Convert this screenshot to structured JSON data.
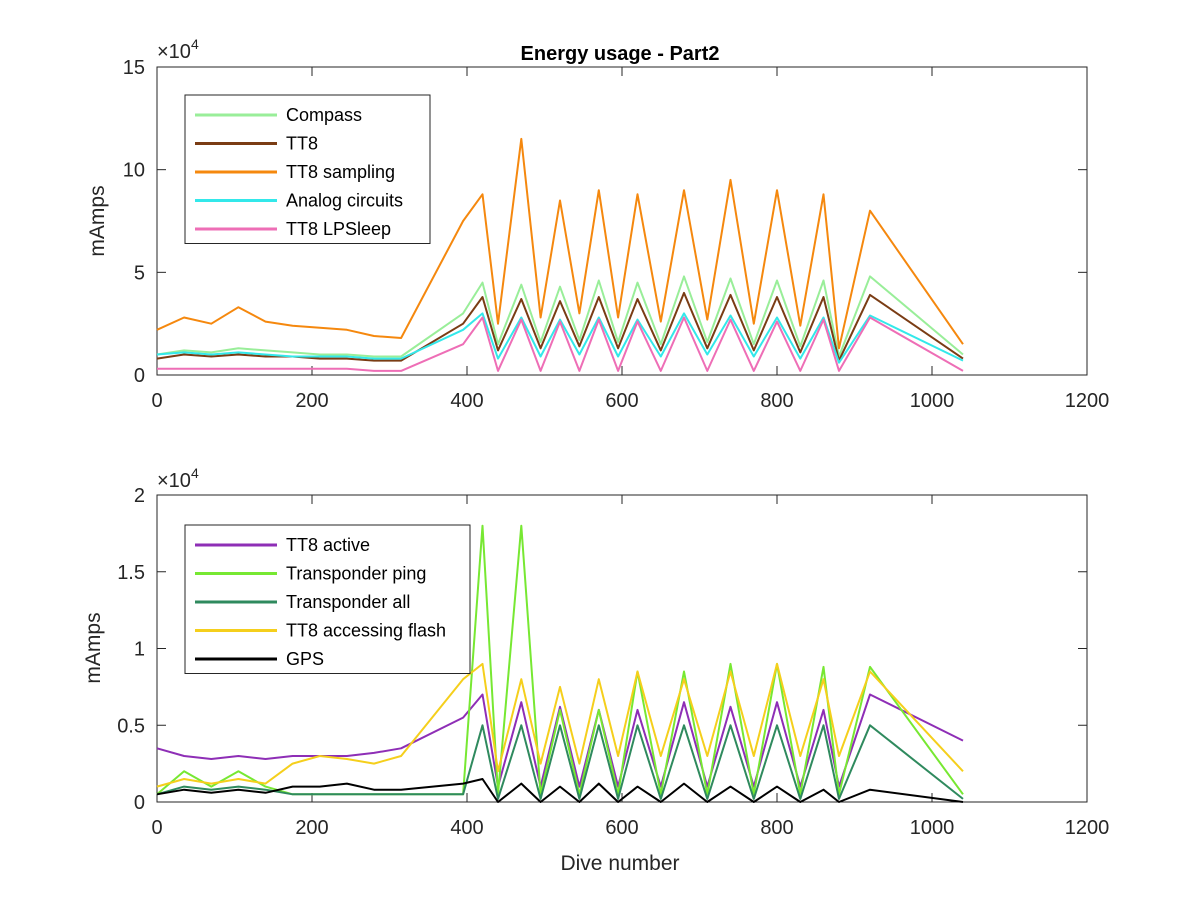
{
  "figure": {
    "title": "Energy usage - Part2",
    "xlabel": "Dive number"
  },
  "chart_data": [
    {
      "type": "line",
      "title": "Energy usage - Part2",
      "xlabel": "",
      "ylabel": "mAmps",
      "y_multiplier": "×10",
      "y_exponent": "4",
      "xlim": [
        0,
        1200
      ],
      "ylim": [
        0,
        15
      ],
      "x_ticks": [
        "0",
        "200",
        "400",
        "600",
        "800",
        "1000",
        "1200"
      ],
      "y_ticks": [
        "0",
        "5",
        "10",
        "15"
      ],
      "grid": false,
      "legend_position": "top-left",
      "series": [
        {
          "name": "Compass",
          "color": "#99ee99",
          "values": [
            1.0,
            1.2,
            1.1,
            1.3,
            1.2,
            1.1,
            1.0,
            1.0,
            0.9,
            0.9,
            3.0,
            4.5,
            1.5,
            4.4,
            1.6,
            4.3,
            1.7,
            4.6,
            1.6,
            4.5,
            1.5,
            4.8,
            1.6,
            4.7,
            1.5,
            4.6,
            1.4,
            4.6,
            0.9,
            4.8,
            1.0
          ]
        },
        {
          "name": "TT8",
          "color": "#7a3c14",
          "values": [
            0.8,
            1.0,
            0.9,
            1.0,
            0.9,
            0.9,
            0.8,
            0.8,
            0.7,
            0.7,
            2.5,
            3.8,
            1.2,
            3.7,
            1.3,
            3.6,
            1.4,
            3.8,
            1.3,
            3.7,
            1.2,
            4.0,
            1.3,
            3.9,
            1.2,
            3.8,
            1.1,
            3.8,
            0.7,
            3.9,
            0.8
          ]
        },
        {
          "name": "TT8 sampling",
          "color": "#f5880e",
          "values": [
            2.2,
            2.8,
            2.5,
            3.3,
            2.6,
            2.4,
            2.3,
            2.2,
            1.9,
            1.8,
            7.5,
            8.8,
            2.5,
            11.5,
            2.8,
            8.5,
            3.0,
            9.0,
            2.8,
            8.8,
            2.6,
            9.0,
            2.7,
            9.5,
            2.5,
            9.0,
            2.4,
            8.8,
            1.3,
            8.0,
            1.5
          ]
        },
        {
          "name": "Analog circuits",
          "color": "#33e8ea",
          "values": [
            1.0,
            1.1,
            1.0,
            1.1,
            1.0,
            0.9,
            0.9,
            0.9,
            0.8,
            0.8,
            2.2,
            3.0,
            0.8,
            2.8,
            0.9,
            2.7,
            1.0,
            2.8,
            0.9,
            2.7,
            0.9,
            3.0,
            1.0,
            2.9,
            0.9,
            2.8,
            0.8,
            2.8,
            0.6,
            2.9,
            0.7
          ]
        },
        {
          "name": "TT8 LPSleep",
          "color": "#ee6eb6",
          "values": [
            0.3,
            0.3,
            0.3,
            0.3,
            0.3,
            0.3,
            0.3,
            0.3,
            0.2,
            0.2,
            1.5,
            2.8,
            0.2,
            2.7,
            0.2,
            2.6,
            0.2,
            2.7,
            0.2,
            2.6,
            0.2,
            2.8,
            0.2,
            2.7,
            0.2,
            2.6,
            0.2,
            2.7,
            0.2,
            2.8,
            0.2
          ]
        }
      ],
      "x": [
        0,
        35,
        70,
        105,
        140,
        175,
        210,
        245,
        280,
        315,
        395,
        420,
        440,
        470,
        495,
        520,
        545,
        570,
        595,
        620,
        650,
        680,
        710,
        740,
        770,
        800,
        830,
        860,
        880,
        920,
        1040
      ]
    },
    {
      "type": "line",
      "title": "",
      "xlabel": "Dive number",
      "ylabel": "mAmps",
      "y_multiplier": "×10",
      "y_exponent": "4",
      "xlim": [
        0,
        1200
      ],
      "ylim": [
        0,
        2
      ],
      "x_ticks": [
        "0",
        "200",
        "400",
        "600",
        "800",
        "1000",
        "1200"
      ],
      "y_ticks": [
        "0",
        "0.5",
        "1",
        "1.5",
        "2"
      ],
      "grid": false,
      "legend_position": "top-left",
      "series": [
        {
          "name": "TT8 active",
          "color": "#8e2eb6",
          "values": [
            0.35,
            0.3,
            0.28,
            0.3,
            0.28,
            0.3,
            0.3,
            0.3,
            0.32,
            0.35,
            0.55,
            0.7,
            0.1,
            0.65,
            0.1,
            0.62,
            0.1,
            0.6,
            0.1,
            0.6,
            0.1,
            0.65,
            0.1,
            0.62,
            0.1,
            0.65,
            0.1,
            0.6,
            0.1,
            0.7,
            0.4
          ]
        },
        {
          "name": "Transponder ping",
          "color": "#77e832",
          "values": [
            0.05,
            0.2,
            0.1,
            0.2,
            0.1,
            0.05,
            0.05,
            0.05,
            0.05,
            0.05,
            0.05,
            1.8,
            0.05,
            1.8,
            0.05,
            0.6,
            0.05,
            0.6,
            0.05,
            0.85,
            0.05,
            0.85,
            0.05,
            0.9,
            0.05,
            0.9,
            0.05,
            0.88,
            0.05,
            0.88,
            0.05
          ]
        },
        {
          "name": "Transponder all",
          "color": "#2f8a5e",
          "values": [
            0.05,
            0.1,
            0.08,
            0.1,
            0.08,
            0.05,
            0.05,
            0.05,
            0.05,
            0.05,
            0.05,
            0.5,
            0.02,
            0.5,
            0.02,
            0.5,
            0.02,
            0.5,
            0.02,
            0.5,
            0.02,
            0.5,
            0.02,
            0.5,
            0.02,
            0.5,
            0.02,
            0.5,
            0.02,
            0.5,
            0.02
          ]
        },
        {
          "name": "TT8 accessing flash",
          "color": "#f5cf1c",
          "values": [
            0.1,
            0.15,
            0.12,
            0.15,
            0.12,
            0.25,
            0.3,
            0.28,
            0.25,
            0.3,
            0.8,
            0.9,
            0.2,
            0.8,
            0.25,
            0.75,
            0.25,
            0.8,
            0.3,
            0.85,
            0.3,
            0.8,
            0.3,
            0.85,
            0.3,
            0.9,
            0.3,
            0.8,
            0.3,
            0.85,
            0.2
          ]
        },
        {
          "name": "GPS",
          "color": "#000000",
          "values": [
            0.05,
            0.08,
            0.06,
            0.08,
            0.06,
            0.1,
            0.1,
            0.12,
            0.08,
            0.08,
            0.12,
            0.15,
            0.0,
            0.12,
            0.0,
            0.1,
            0.0,
            0.12,
            0.0,
            0.1,
            0.0,
            0.12,
            0.0,
            0.1,
            0.0,
            0.1,
            0.0,
            0.08,
            0.0,
            0.08,
            0.0
          ]
        }
      ],
      "x": [
        0,
        35,
        70,
        105,
        140,
        175,
        210,
        245,
        280,
        315,
        395,
        420,
        440,
        470,
        495,
        520,
        545,
        570,
        595,
        620,
        650,
        680,
        710,
        740,
        770,
        800,
        830,
        860,
        880,
        920,
        1040
      ]
    }
  ]
}
